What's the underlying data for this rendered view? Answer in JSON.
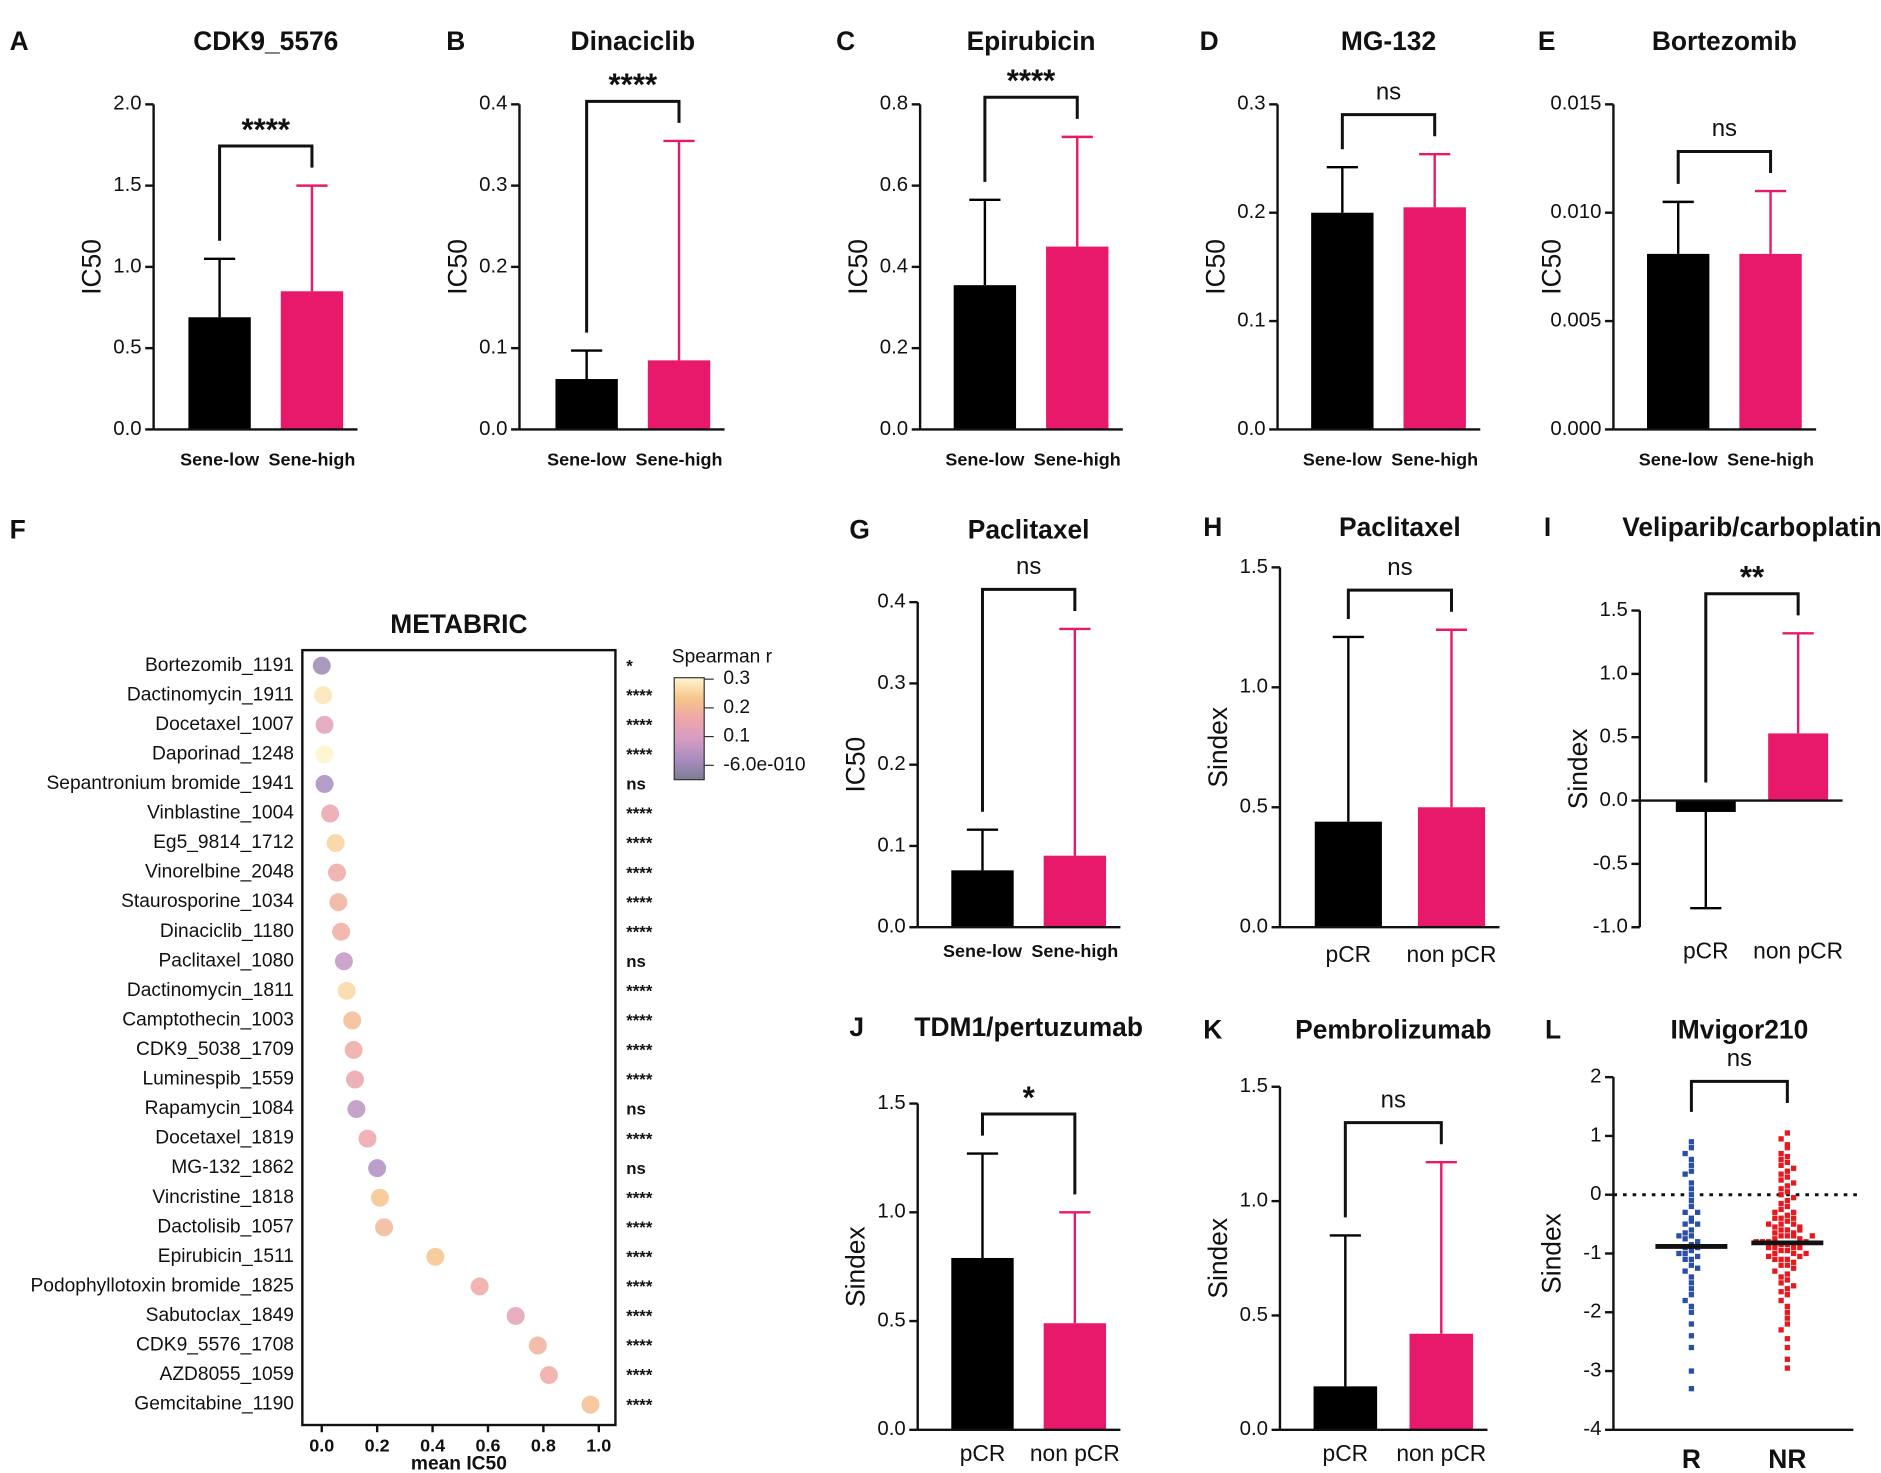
{
  "chart_data": [
    {
      "type": "bar",
      "panel": "A",
      "title": "CDK9_5576",
      "ylabel": "IC50",
      "categories": [
        "Sene-low",
        "Sene-high"
      ],
      "values": [
        0.69,
        0.85
      ],
      "errors": [
        0.36,
        0.65
      ],
      "colors": [
        "#000000",
        "#e8196b"
      ],
      "ylim": [
        0,
        2.0
      ],
      "yticks": [
        {
          "value": 0,
          "label": "0.0"
        },
        0.5,
        {
          "value": 1,
          "label": "1.0"
        },
        1.5,
        {
          "value": 2,
          "label": "2.0"
        }
      ],
      "significance": "****"
    },
    {
      "type": "bar",
      "panel": "B",
      "title": "Dinaciclib",
      "ylabel": "IC50",
      "categories": [
        "Sene-low",
        "Sene-high"
      ],
      "values": [
        0.062,
        0.085
      ],
      "errors": [
        0.035,
        0.27
      ],
      "colors": [
        "#000000",
        "#e8196b"
      ],
      "ylim": [
        0,
        0.4
      ],
      "yticks": [
        {
          "value": 0,
          "label": "0.0"
        },
        0.1,
        0.2,
        0.3,
        0.4
      ],
      "significance": "****"
    },
    {
      "type": "bar",
      "panel": "C",
      "title": "Epirubicin",
      "ylabel": "IC50",
      "categories": [
        "Sene-low",
        "Sene-high"
      ],
      "values": [
        0.355,
        0.45
      ],
      "errors": [
        0.21,
        0.27
      ],
      "colors": [
        "#000000",
        "#e8196b"
      ],
      "ylim": [
        0,
        0.8
      ],
      "yticks": [
        {
          "value": 0,
          "label": "0.0"
        },
        0.2,
        0.4,
        0.6,
        0.8
      ],
      "significance": "****"
    },
    {
      "type": "bar",
      "panel": "D",
      "title": "MG-132",
      "ylabel": "IC50",
      "categories": [
        "Sene-low",
        "Sene-high"
      ],
      "values": [
        0.2,
        0.205
      ],
      "errors": [
        0.042,
        0.049
      ],
      "colors": [
        "#000000",
        "#e8196b"
      ],
      "ylim": [
        0,
        0.3
      ],
      "yticks": [
        {
          "value": 0,
          "label": "0.0"
        },
        0.1,
        0.2,
        0.3
      ],
      "significance": "ns"
    },
    {
      "type": "bar",
      "panel": "E",
      "title": "Bortezomib",
      "ylabel": "IC50",
      "categories": [
        "Sene-low",
        "Sene-high"
      ],
      "values": [
        0.0081,
        0.0081
      ],
      "errors": [
        0.0024,
        0.0029
      ],
      "colors": [
        "#000000",
        "#e8196b"
      ],
      "ylim": [
        0,
        0.015
      ],
      "yticks": [
        {
          "value": 0,
          "label": "0.000"
        },
        {
          "value": 0.005,
          "label": "0.005"
        },
        {
          "value": 0.01,
          "label": "0.010"
        },
        0.015
      ],
      "significance": "ns"
    },
    {
      "type": "dot",
      "panel": "F",
      "title": "METABRIC",
      "xlabel": "mean IC50",
      "categories": [
        "Bortezomib_1191",
        "Dactinomycin_1911",
        "Docetaxel_1007",
        "Daporinad_1248",
        "Sepantronium bromide_1941",
        "Vinblastine_1004",
        "Eg5_9814_1712",
        "Vinorelbine_2048",
        "Staurosporine_1034",
        "Dinaciclib_1180",
        "Paclitaxel_1080",
        "Dactinomycin_1811",
        "Camptothecin_1003",
        "CDK9_5038_1709",
        "Luminespib_1559",
        "Rapamycin_1084",
        "Docetaxel_1819",
        "MG-132_1862",
        "Vincristine_1818",
        "Dactolisib_1057",
        "Epirubicin_1511",
        "Podophyllotoxin bromide_1825",
        "Sabutoclax_1849",
        "CDK9_5576_1708",
        "AZD8055_1059",
        "Gemcitabine_1190"
      ],
      "values": [
        0.0,
        0.005,
        0.01,
        0.01,
        0.01,
        0.03,
        0.05,
        0.055,
        0.06,
        0.07,
        0.08,
        0.09,
        0.11,
        0.115,
        0.12,
        0.125,
        0.165,
        0.2,
        0.21,
        0.225,
        0.41,
        0.57,
        0.7,
        0.78,
        0.82,
        0.97
      ],
      "spearman": [
        0.0,
        0.28,
        0.12,
        0.3,
        0.02,
        0.15,
        0.25,
        0.17,
        0.19,
        0.18,
        0.06,
        0.26,
        0.21,
        0.17,
        0.15,
        0.05,
        0.16,
        0.03,
        0.23,
        0.2,
        0.23,
        0.17,
        0.13,
        0.19,
        0.17,
        0.22
      ],
      "significance": [
        "*",
        "****",
        "****",
        "****",
        "ns",
        "****",
        "****",
        "****",
        "****",
        "****",
        "ns",
        "****",
        "****",
        "****",
        "****",
        "ns",
        "****",
        "ns",
        "****",
        "****",
        "****",
        "****",
        "****",
        "****",
        "****",
        "****"
      ],
      "xlim": [
        -0.07,
        1.06
      ],
      "xticks": [
        {
          "value": 0,
          "label": "0.0"
        },
        0.2,
        0.4,
        0.6,
        0.8,
        {
          "value": 1,
          "label": "1.0"
        }
      ],
      "colorbar_title": "Spearman r",
      "clim": [
        -0.05,
        0.305
      ],
      "cticks": [
        0.3,
        0.2,
        0.1,
        {
          "value": -6e-10,
          "label": "-6.0e-010"
        }
      ],
      "colormap": [
        "#7d7d92",
        "#a98cc0",
        "#d79cc4",
        "#eea6a8",
        "#f6c68a",
        "#fff6cf"
      ]
    },
    {
      "type": "bar",
      "panel": "G",
      "title": "Paclitaxel",
      "ylabel": "IC50",
      "categories": [
        "Sene-low",
        "Sene-high"
      ],
      "values": [
        0.07,
        0.088
      ],
      "errors": [
        0.05,
        0.279
      ],
      "colors": [
        "#000000",
        "#e8196b"
      ],
      "ylim": [
        0,
        0.4
      ],
      "yticks": [
        {
          "value": 0,
          "label": "0.0"
        },
        0.1,
        0.2,
        0.3,
        0.4
      ],
      "significance": "ns"
    },
    {
      "type": "bar",
      "panel": "H",
      "title": "Paclitaxel",
      "ylabel": "Sindex",
      "categories": [
        "pCR",
        "non pCR"
      ],
      "values": [
        0.44,
        0.5
      ],
      "errors": [
        0.77,
        0.74
      ],
      "colors": [
        "#000000",
        "#e8196b"
      ],
      "ylim": [
        0,
        1.5
      ],
      "yticks": [
        {
          "value": 0,
          "label": "0.0"
        },
        0.5,
        {
          "value": 1,
          "label": "1.0"
        },
        1.5
      ],
      "significance": "ns"
    },
    {
      "type": "bar",
      "panel": "I",
      "title": "Veliparib/carboplatin",
      "ylabel": "Sindex",
      "categories": [
        "pCR",
        "non pCR"
      ],
      "values": [
        -0.09,
        0.53
      ],
      "errors": [
        0.76,
        0.79
      ],
      "colors": [
        "#000000",
        "#e8196b"
      ],
      "ylim": [
        -1.0,
        1.5
      ],
      "yticks": [
        {
          "value": -1,
          "label": "-1.0"
        },
        -0.5,
        {
          "value": 0,
          "label": "0.0"
        },
        0.5,
        {
          "value": 1,
          "label": "1.0"
        },
        1.5
      ],
      "significance": "**"
    },
    {
      "type": "bar",
      "panel": "J",
      "title": "TDM1/pertuzumab",
      "ylabel": "Sindex",
      "categories": [
        "pCR",
        "non pCR"
      ],
      "values": [
        0.79,
        0.49
      ],
      "errors": [
        0.48,
        0.51
      ],
      "colors": [
        "#000000",
        "#e8196b"
      ],
      "ylim": [
        0,
        1.5
      ],
      "yticks": [
        {
          "value": 0,
          "label": "0.0"
        },
        0.5,
        {
          "value": 1,
          "label": "1.0"
        },
        1.5
      ],
      "significance": "*"
    },
    {
      "type": "bar",
      "panel": "K",
      "title": "Pembrolizumab",
      "ylabel": "Sindex",
      "categories": [
        "pCR",
        "non pCR"
      ],
      "values": [
        0.19,
        0.42
      ],
      "errors": [
        0.66,
        0.75
      ],
      "colors": [
        "#000000",
        "#e8196b"
      ],
      "ylim": [
        0,
        1.5
      ],
      "yticks": [
        {
          "value": 0,
          "label": "0.0"
        },
        0.5,
        {
          "value": 1,
          "label": "1.0"
        },
        1.5
      ],
      "significance": "ns"
    },
    {
      "type": "strip",
      "panel": "L",
      "title": "IMvigor210",
      "ylabel": "Sindex",
      "categories": [
        "R",
        "NR"
      ],
      "colors": [
        "#2a4fa8",
        "#e8191e"
      ],
      "means": [
        -0.88,
        -0.82
      ],
      "hline": 0,
      "ylim": [
        -4,
        2
      ],
      "yticks": [
        -4,
        -3,
        -2,
        -1,
        0,
        1,
        2
      ],
      "significance": "ns",
      "values": [
        [
          0.9,
          0.8,
          0.7,
          0.6,
          0.5,
          0.4,
          0.35,
          0.2,
          0.1,
          0.0,
          -0.1,
          -0.2,
          -0.3,
          -0.4,
          -0.45,
          -0.5,
          -0.6,
          -0.65,
          -0.7,
          -0.75,
          -0.8,
          -0.85,
          -0.9,
          -0.95,
          -1.0,
          -1.05,
          -1.1,
          -1.2,
          -1.3,
          -1.4,
          -1.5,
          -1.6,
          -1.7,
          -1.8,
          -1.9,
          -2.0,
          -2.2,
          -2.4,
          -2.6,
          -3.0,
          -3.3,
          -0.5,
          -0.7,
          -1.0,
          -1.1,
          -0.3,
          -0.9,
          -1.25
        ],
        [
          1.05,
          0.95,
          0.85,
          0.8,
          0.7,
          0.65,
          0.6,
          0.55,
          0.5,
          0.45,
          0.4,
          0.35,
          0.3,
          0.25,
          0.2,
          0.15,
          0.1,
          0.05,
          0.0,
          -0.05,
          -0.1,
          -0.15,
          -0.2,
          -0.25,
          -0.3,
          -0.3,
          -0.35,
          -0.4,
          -0.4,
          -0.45,
          -0.5,
          -0.5,
          -0.55,
          -0.55,
          -0.6,
          -0.6,
          -0.65,
          -0.65,
          -0.7,
          -0.7,
          -0.7,
          -0.75,
          -0.75,
          -0.8,
          -0.8,
          -0.8,
          -0.85,
          -0.85,
          -0.9,
          -0.9,
          -0.9,
          -0.95,
          -0.95,
          -1.0,
          -1.0,
          -1.05,
          -1.05,
          -1.1,
          -1.1,
          -1.15,
          -1.2,
          -1.2,
          -1.25,
          -1.3,
          -1.35,
          -1.4,
          -1.45,
          -1.5,
          -1.55,
          -1.6,
          -1.65,
          -1.7,
          -1.8,
          -1.9,
          -2.0,
          -2.1,
          -2.2,
          -2.3,
          -2.45,
          -2.6,
          -2.8,
          -2.95,
          -0.6,
          -0.7,
          -0.8,
          -0.9,
          -1.0,
          -0.5,
          -0.4,
          -1.1
        ]
      ]
    }
  ]
}
